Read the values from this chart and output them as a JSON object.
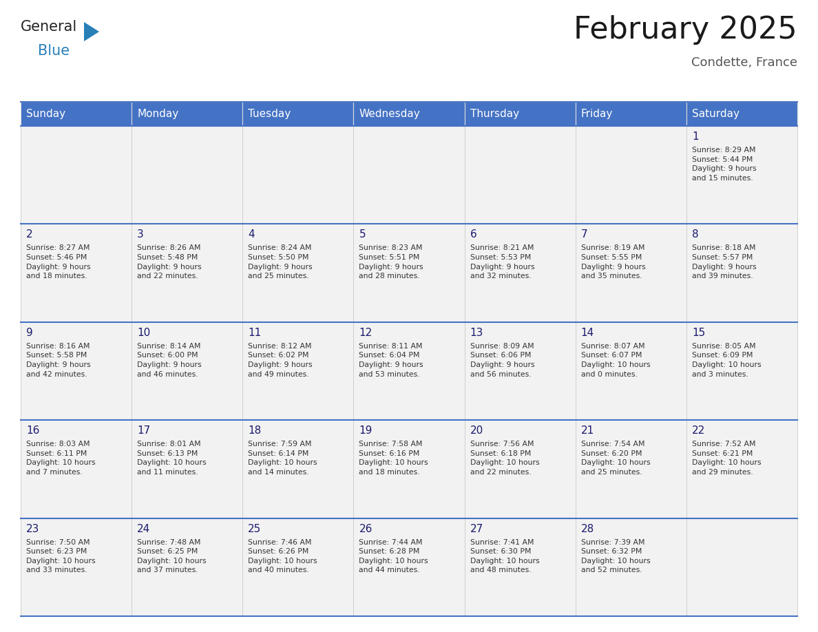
{
  "title": "February 2025",
  "subtitle": "Condette, France",
  "days_of_week": [
    "Sunday",
    "Monday",
    "Tuesday",
    "Wednesday",
    "Thursday",
    "Friday",
    "Saturday"
  ],
  "header_bg": "#4472C4",
  "header_text": "#FFFFFF",
  "cell_bg": "#f2f2f2",
  "border_color": "#4472C4",
  "cell_border_color": "#cccccc",
  "day_num_color": "#1a1a6e",
  "info_text_color": "#333333",
  "logo_general_color": "#222222",
  "logo_blue_color": "#2980b9",
  "logo_triangle_color": "#2980b9",
  "title_color": "#1a1a1a",
  "subtitle_color": "#555555",
  "weeks": [
    [
      {
        "day": null,
        "info": ""
      },
      {
        "day": null,
        "info": ""
      },
      {
        "day": null,
        "info": ""
      },
      {
        "day": null,
        "info": ""
      },
      {
        "day": null,
        "info": ""
      },
      {
        "day": null,
        "info": ""
      },
      {
        "day": 1,
        "info": "Sunrise: 8:29 AM\nSunset: 5:44 PM\nDaylight: 9 hours\nand 15 minutes."
      }
    ],
    [
      {
        "day": 2,
        "info": "Sunrise: 8:27 AM\nSunset: 5:46 PM\nDaylight: 9 hours\nand 18 minutes."
      },
      {
        "day": 3,
        "info": "Sunrise: 8:26 AM\nSunset: 5:48 PM\nDaylight: 9 hours\nand 22 minutes."
      },
      {
        "day": 4,
        "info": "Sunrise: 8:24 AM\nSunset: 5:50 PM\nDaylight: 9 hours\nand 25 minutes."
      },
      {
        "day": 5,
        "info": "Sunrise: 8:23 AM\nSunset: 5:51 PM\nDaylight: 9 hours\nand 28 minutes."
      },
      {
        "day": 6,
        "info": "Sunrise: 8:21 AM\nSunset: 5:53 PM\nDaylight: 9 hours\nand 32 minutes."
      },
      {
        "day": 7,
        "info": "Sunrise: 8:19 AM\nSunset: 5:55 PM\nDaylight: 9 hours\nand 35 minutes."
      },
      {
        "day": 8,
        "info": "Sunrise: 8:18 AM\nSunset: 5:57 PM\nDaylight: 9 hours\nand 39 minutes."
      }
    ],
    [
      {
        "day": 9,
        "info": "Sunrise: 8:16 AM\nSunset: 5:58 PM\nDaylight: 9 hours\nand 42 minutes."
      },
      {
        "day": 10,
        "info": "Sunrise: 8:14 AM\nSunset: 6:00 PM\nDaylight: 9 hours\nand 46 minutes."
      },
      {
        "day": 11,
        "info": "Sunrise: 8:12 AM\nSunset: 6:02 PM\nDaylight: 9 hours\nand 49 minutes."
      },
      {
        "day": 12,
        "info": "Sunrise: 8:11 AM\nSunset: 6:04 PM\nDaylight: 9 hours\nand 53 minutes."
      },
      {
        "day": 13,
        "info": "Sunrise: 8:09 AM\nSunset: 6:06 PM\nDaylight: 9 hours\nand 56 minutes."
      },
      {
        "day": 14,
        "info": "Sunrise: 8:07 AM\nSunset: 6:07 PM\nDaylight: 10 hours\nand 0 minutes."
      },
      {
        "day": 15,
        "info": "Sunrise: 8:05 AM\nSunset: 6:09 PM\nDaylight: 10 hours\nand 3 minutes."
      }
    ],
    [
      {
        "day": 16,
        "info": "Sunrise: 8:03 AM\nSunset: 6:11 PM\nDaylight: 10 hours\nand 7 minutes."
      },
      {
        "day": 17,
        "info": "Sunrise: 8:01 AM\nSunset: 6:13 PM\nDaylight: 10 hours\nand 11 minutes."
      },
      {
        "day": 18,
        "info": "Sunrise: 7:59 AM\nSunset: 6:14 PM\nDaylight: 10 hours\nand 14 minutes."
      },
      {
        "day": 19,
        "info": "Sunrise: 7:58 AM\nSunset: 6:16 PM\nDaylight: 10 hours\nand 18 minutes."
      },
      {
        "day": 20,
        "info": "Sunrise: 7:56 AM\nSunset: 6:18 PM\nDaylight: 10 hours\nand 22 minutes."
      },
      {
        "day": 21,
        "info": "Sunrise: 7:54 AM\nSunset: 6:20 PM\nDaylight: 10 hours\nand 25 minutes."
      },
      {
        "day": 22,
        "info": "Sunrise: 7:52 AM\nSunset: 6:21 PM\nDaylight: 10 hours\nand 29 minutes."
      }
    ],
    [
      {
        "day": 23,
        "info": "Sunrise: 7:50 AM\nSunset: 6:23 PM\nDaylight: 10 hours\nand 33 minutes."
      },
      {
        "day": 24,
        "info": "Sunrise: 7:48 AM\nSunset: 6:25 PM\nDaylight: 10 hours\nand 37 minutes."
      },
      {
        "day": 25,
        "info": "Sunrise: 7:46 AM\nSunset: 6:26 PM\nDaylight: 10 hours\nand 40 minutes."
      },
      {
        "day": 26,
        "info": "Sunrise: 7:44 AM\nSunset: 6:28 PM\nDaylight: 10 hours\nand 44 minutes."
      },
      {
        "day": 27,
        "info": "Sunrise: 7:41 AM\nSunset: 6:30 PM\nDaylight: 10 hours\nand 48 minutes."
      },
      {
        "day": 28,
        "info": "Sunrise: 7:39 AM\nSunset: 6:32 PM\nDaylight: 10 hours\nand 52 minutes."
      },
      {
        "day": null,
        "info": ""
      }
    ]
  ]
}
